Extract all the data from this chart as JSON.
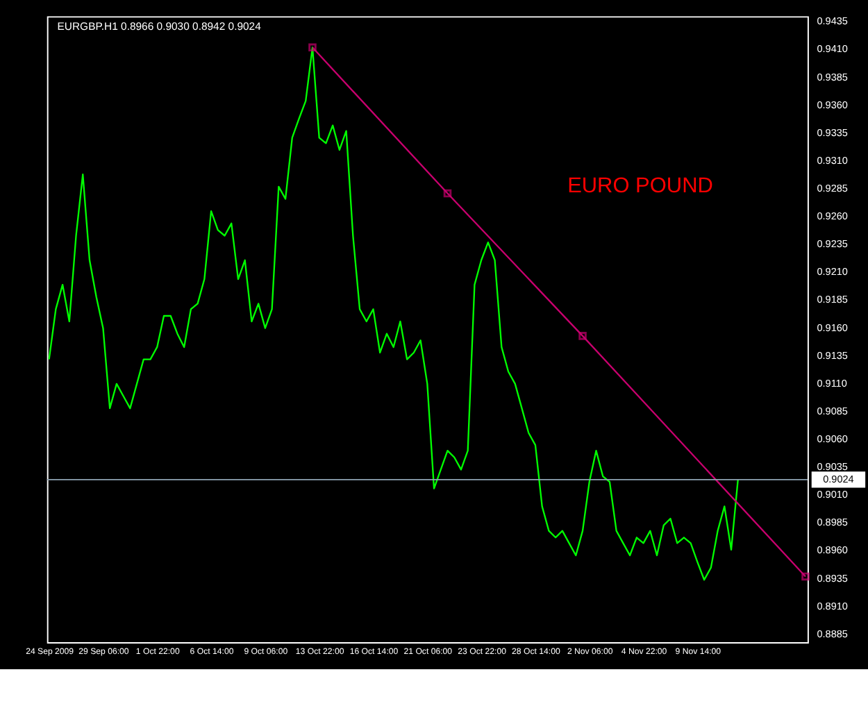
{
  "chart_data": {
    "type": "line",
    "title": "EURGBP.H1  0.8966 0.9030 0.8942 0.9024",
    "annotations": [
      "EURO POUND"
    ],
    "categories": [
      "24 Sep 2009",
      null,
      null,
      null,
      null,
      null,
      null,
      null,
      "29 Sep 06:00",
      null,
      null,
      null,
      null,
      null,
      null,
      null,
      "1 Oct 22:00",
      null,
      null,
      null,
      null,
      null,
      null,
      null,
      "6 Oct 14:00",
      null,
      null,
      null,
      null,
      null,
      null,
      null,
      "9 Oct 06:00",
      null,
      null,
      null,
      null,
      null,
      null,
      null,
      "13 Oct 22:00",
      null,
      null,
      null,
      null,
      null,
      null,
      null,
      "16 Oct 14:00",
      null,
      null,
      null,
      null,
      null,
      null,
      null,
      "21 Oct 06:00",
      null,
      null,
      null,
      null,
      null,
      null,
      null,
      "23 Oct 22:00",
      null,
      null,
      null,
      null,
      null,
      null,
      null,
      "28 Oct 14:00",
      null,
      null,
      null,
      null,
      null,
      null,
      null,
      "2 Nov 06:00",
      null,
      null,
      null,
      null,
      null,
      null,
      null,
      "4 Nov 22:00",
      null,
      null,
      null,
      null,
      null,
      null,
      null,
      "9 Nov 14:00",
      null,
      null,
      null,
      null,
      null,
      null,
      null,
      null,
      null,
      null,
      null,
      null,
      null,
      null,
      null,
      null
    ],
    "ylim": [
      0.8878,
      0.944
    ],
    "yticks": [
      {
        "value": 0.8885,
        "label": "0.8885"
      },
      {
        "value": 0.891,
        "label": "0.8910"
      },
      {
        "value": 0.8935,
        "label": "0.8935"
      },
      {
        "value": 0.896,
        "label": "0.8960"
      },
      {
        "value": 0.8985,
        "label": "0.8985"
      },
      {
        "value": 0.901,
        "label": "0.9010"
      },
      {
        "value": 0.9035,
        "label": "0.9035"
      },
      {
        "value": 0.906,
        "label": "0.9060"
      },
      {
        "value": 0.9085,
        "label": "0.9085"
      },
      {
        "value": 0.911,
        "label": "0.9110"
      },
      {
        "value": 0.9135,
        "label": "0.9135"
      },
      {
        "value": 0.916,
        "label": "0.9160"
      },
      {
        "value": 0.9185,
        "label": "0.9185"
      },
      {
        "value": 0.921,
        "label": "0.9210"
      },
      {
        "value": 0.9235,
        "label": "0.9235"
      },
      {
        "value": 0.926,
        "label": "0.9260"
      },
      {
        "value": 0.9285,
        "label": "0.9285"
      },
      {
        "value": 0.931,
        "label": "0.9310"
      },
      {
        "value": 0.9335,
        "label": "0.9335"
      },
      {
        "value": 0.936,
        "label": "0.9360"
      },
      {
        "value": 0.9385,
        "label": "0.9385"
      },
      {
        "value": 0.941,
        "label": "0.9410"
      },
      {
        "value": 0.9435,
        "label": "0.9435"
      }
    ],
    "grid": false,
    "ref_lines": [
      {
        "axis": "y",
        "value": 0.9024,
        "label": "0.9024",
        "color": "#8fa3b3"
      }
    ],
    "series": [
      {
        "color": "#00ff00",
        "marker": "none",
        "line_style": "solid",
        "values": [
          0.9132,
          0.9177,
          0.9199,
          0.9166,
          0.9243,
          0.9298,
          0.9221,
          0.9188,
          0.916,
          0.9088,
          0.911,
          0.9099,
          0.9088,
          0.911,
          0.9132,
          0.9132,
          0.9143,
          0.9171,
          0.9171,
          0.9155,
          0.9143,
          0.9177,
          0.9182,
          0.9204,
          0.9265,
          0.9248,
          0.9243,
          0.9254,
          0.9204,
          0.9221,
          0.9166,
          0.9182,
          0.916,
          0.9177,
          0.9287,
          0.9276,
          0.9331,
          0.9348,
          0.9364,
          0.9412,
          0.9331,
          0.9326,
          0.9342,
          0.932,
          0.9337,
          0.9243,
          0.9177,
          0.9166,
          0.9177,
          0.9138,
          0.9155,
          0.9143,
          0.9166,
          0.9132,
          0.9138,
          0.9149,
          0.911,
          0.9016,
          0.9033,
          0.905,
          0.9044,
          0.9033,
          0.905,
          0.9199,
          0.9221,
          0.9237,
          0.9221,
          0.9143,
          0.9121,
          0.911,
          0.9088,
          0.9066,
          0.9055,
          0.9,
          0.8978,
          0.8972,
          0.8978,
          0.8967,
          0.8956,
          0.8978,
          0.9022,
          0.905,
          0.9027,
          0.9022,
          0.8978,
          0.8967,
          0.8956,
          0.8972,
          0.8967,
          0.8978,
          0.8956,
          0.8983,
          0.8989,
          0.8967,
          0.8972,
          0.8967,
          0.895,
          0.8934,
          0.8945,
          0.8978,
          0.9,
          0.8961,
          0.9024,
          null,
          null,
          null,
          null,
          null,
          null,
          null,
          null,
          null,
          null
        ]
      },
      {
        "color": "#c8006e",
        "marker": "square",
        "line_style": "solid",
        "values": [
          null,
          null,
          null,
          null,
          null,
          null,
          null,
          null,
          null,
          null,
          null,
          null,
          null,
          null,
          null,
          null,
          null,
          null,
          null,
          null,
          null,
          null,
          null,
          null,
          null,
          null,
          null,
          null,
          null,
          null,
          null,
          null,
          null,
          null,
          null,
          null,
          null,
          null,
          null,
          0.9412,
          null,
          null,
          null,
          null,
          null,
          null,
          null,
          null,
          null,
          null,
          null,
          null,
          null,
          null,
          null,
          null,
          null,
          null,
          null,
          0.9281,
          null,
          null,
          null,
          null,
          null,
          null,
          null,
          null,
          null,
          null,
          null,
          null,
          null,
          null,
          null,
          null,
          null,
          null,
          null,
          0.9153,
          null,
          null,
          null,
          null,
          null,
          null,
          null,
          null,
          null,
          null,
          null,
          null,
          null,
          null,
          null,
          null,
          null,
          null,
          null,
          null,
          null,
          null,
          null,
          null,
          null,
          null,
          null,
          null,
          null,
          null,
          null,
          null,
          0.8937
        ]
      }
    ]
  }
}
